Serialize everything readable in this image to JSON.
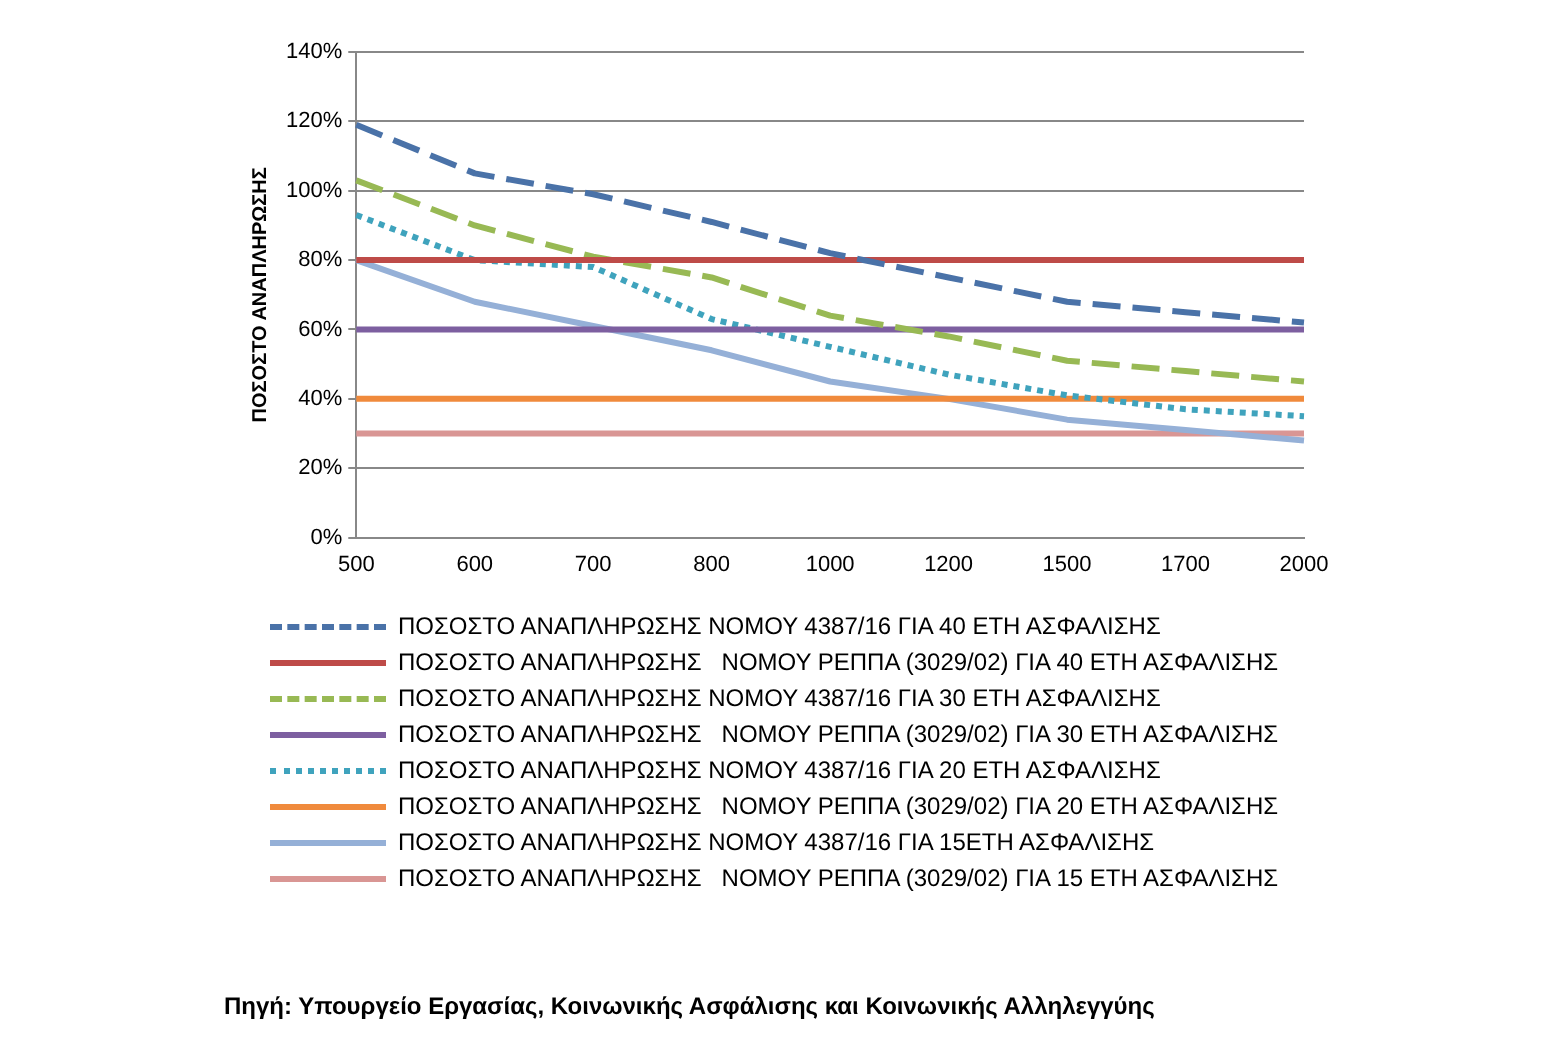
{
  "chart_data": {
    "type": "line",
    "ylabel": "ΠΟΣΟΣΤΟ ΑΝΑΠΛΗΡΩΣΗΣ",
    "categories": [
      "500",
      "600",
      "700",
      "800",
      "1000",
      "1200",
      "1500",
      "1700",
      "2000"
    ],
    "ylim": [
      0,
      140
    ],
    "yticks": [
      {
        "value": 0,
        "label": "0%"
      },
      {
        "value": 20,
        "label": "20%"
      },
      {
        "value": 40,
        "label": "40%"
      },
      {
        "value": 60,
        "label": "60%"
      },
      {
        "value": 80,
        "label": "80%"
      },
      {
        "value": 100,
        "label": "100%"
      },
      {
        "value": 120,
        "label": "120%"
      },
      {
        "value": 140,
        "label": "140%"
      }
    ],
    "grid": "y",
    "legend": "bottom",
    "marker": "none",
    "series": [
      {
        "name": "ΠΟΣΟΣΤΟ ΑΝΑΠΛΗΡΩΣΗΣ ΝΟΜΟΥ 4387/16 ΓΙΑ 40 ΕΤΗ ΑΣΦΑΛΙΣΗΣ",
        "color": "#4a72a8",
        "line_style": "dashed",
        "values": [
          119,
          105,
          99,
          91,
          82,
          75,
          68,
          65,
          62
        ]
      },
      {
        "name": "ΠΟΣΟΣΤΟ ΑΝΑΠΛΗΡΩΣΗΣ   ΝΟΜΟΥ ΡΕΠΠΑ (3029/02) ΓΙΑ 40 ΕΤΗ ΑΣΦΑΛΙΣΗΣ",
        "color": "#be4b48",
        "line_style": "solid",
        "values": [
          80,
          80,
          80,
          80,
          80,
          80,
          80,
          80,
          80
        ]
      },
      {
        "name": "ΠΟΣΟΣΤΟ ΑΝΑΠΛΗΡΩΣΗΣ ΝΟΜΟΥ 4387/16 ΓΙΑ 30 ΕΤΗ ΑΣΦΑΛΙΣΗΣ",
        "color": "#98b954",
        "line_style": "dashed",
        "values": [
          103,
          90,
          81,
          75,
          64,
          58,
          51,
          48,
          45
        ]
      },
      {
        "name": "ΠΟΣΟΣΤΟ ΑΝΑΠΛΗΡΩΣΗΣ   ΝΟΜΟΥ ΡΕΠΠΑ (3029/02) ΓΙΑ 30 ΕΤΗ ΑΣΦΑΛΙΣΗΣ",
        "color": "#7d5fa0",
        "line_style": "solid",
        "values": [
          60,
          60,
          60,
          60,
          60,
          60,
          60,
          60,
          60
        ]
      },
      {
        "name": "ΠΟΣΟΣΤΟ ΑΝΑΠΛΗΡΩΣΗΣ ΝΟΜΟΥ 4387/16 ΓΙΑ 20 ΕΤΗ ΑΣΦΑΛΙΣΗΣ",
        "color": "#3fa3bd",
        "line_style": "dotted",
        "values": [
          93,
          80,
          78,
          63,
          55,
          47,
          41,
          37,
          35
        ]
      },
      {
        "name": "ΠΟΣΟΣΤΟ ΑΝΑΠΛΗΡΩΣΗΣ   ΝΟΜΟΥ ΡΕΠΠΑ (3029/02) ΓΙΑ 20 ΕΤΗ ΑΣΦΑΛΙΣΗΣ",
        "color": "#f08a3c",
        "line_style": "solid",
        "values": [
          40,
          40,
          40,
          40,
          40,
          40,
          40,
          40,
          40
        ]
      },
      {
        "name": "ΠΟΣΟΣΤΟ ΑΝΑΠΛΗΡΩΣΗΣ ΝΟΜΟΥ 4387/16 ΓΙΑ 15ΕΤΗ ΑΣΦΑΛΙΣΗΣ",
        "color": "#95b0d7",
        "line_style": "solid",
        "values": [
          80,
          68,
          61,
          54,
          45,
          40,
          34,
          31,
          28
        ]
      },
      {
        "name": "ΠΟΣΟΣΤΟ ΑΝΑΠΛΗΡΩΣΗΣ   ΝΟΜΟΥ ΡΕΠΠΑ (3029/02) ΓΙΑ 15 ΕΤΗ ΑΣΦΑΛΙΣΗΣ",
        "color": "#d99694",
        "line_style": "solid",
        "values": [
          30,
          30,
          30,
          30,
          30,
          30,
          30,
          30,
          30
        ]
      }
    ],
    "annotations": [
      "Πηγή: Υπουργείο Εργασίας, Κοινωνικής Ασφάλισης και Κοινωνικής Αλληλεγγύης"
    ]
  }
}
